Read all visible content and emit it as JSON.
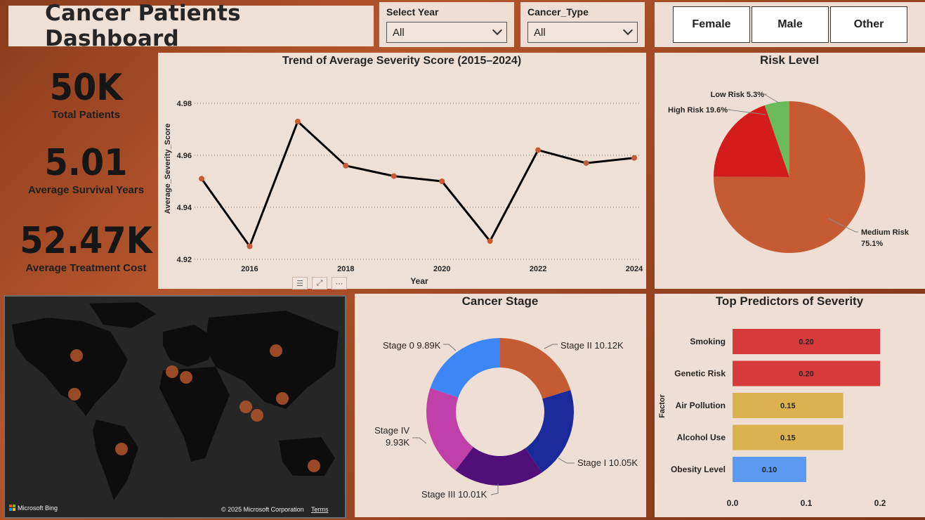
{
  "title": "Cancer Patients Dashboard",
  "filters": [
    {
      "label": "Select Year",
      "value": "All"
    },
    {
      "label": "Cancer_Type",
      "value": "All"
    }
  ],
  "gender_buttons": [
    "Female",
    "Male",
    "Other"
  ],
  "kpis": [
    {
      "value": "50K",
      "caption": "Total  Patients"
    },
    {
      "value": "5.01",
      "caption": "Average Survival Years"
    },
    {
      "value": "52.47K",
      "caption": "Average Treatment Cost"
    }
  ],
  "map": {
    "brand": "Microsoft Bing",
    "copyright": "© 2025 Microsoft Corporation",
    "terms": "Terms",
    "marker_color": "#b4552c"
  },
  "chart_data": [
    {
      "type": "line",
      "title": "Trend of Average Severity Score (2015–2024)",
      "xlabel": "Year",
      "ylabel": "Average_Severity_Score",
      "x": [
        2015,
        2016,
        2017,
        2018,
        2019,
        2020,
        2021,
        2022,
        2023,
        2024
      ],
      "y": [
        4.951,
        4.925,
        4.973,
        4.956,
        4.952,
        4.95,
        4.927,
        4.962,
        4.957,
        4.959
      ],
      "xticks": [
        "2016",
        "2018",
        "2020",
        "2022",
        "2024"
      ],
      "yticks": [
        "4.92",
        "4.94",
        "4.96",
        "4.98"
      ],
      "ylim": [
        4.92,
        4.98
      ],
      "grid": true,
      "line_color": "#000000",
      "marker_color": "#c65a33"
    },
    {
      "type": "pie",
      "title": "Risk Level",
      "slices": [
        {
          "label": "Medium Risk",
          "pct": "75.1%",
          "value": 75.1,
          "color": "#c65a33"
        },
        {
          "label": "High Risk",
          "pct": "19.6%",
          "value": 19.6,
          "color": "#d41c1c"
        },
        {
          "label": "Low Risk",
          "pct": "5.3%",
          "value": 5.3,
          "color": "#6bbb5a"
        }
      ]
    },
    {
      "type": "pie",
      "title": "Cancer Stage",
      "slices": [
        {
          "label": "Stage II 10.12K",
          "value": 10.12,
          "color": "#c65a33"
        },
        {
          "label": "Stage I 10.05K",
          "value": 10.05,
          "color": "#1a2a9a"
        },
        {
          "label": "Stage III 10.01K",
          "value": 10.01,
          "color": "#511079"
        },
        {
          "label": "Stage IV",
          "label2": "9.93K",
          "value": 9.93,
          "color": "#c03fa8"
        },
        {
          "label": "Stage 0 9.89K",
          "value": 9.89,
          "color": "#3d86f7"
        }
      ]
    },
    {
      "type": "bar",
      "title": "Top Predictors of Severity",
      "ylabel": "Factor",
      "categories": [
        "Smoking",
        "Genetic Risk",
        "Air Pollution",
        "Alcohol Use",
        "Obesity Level"
      ],
      "values": [
        0.2,
        0.2,
        0.15,
        0.15,
        0.1
      ],
      "value_labels": [
        "0.20",
        "0.20",
        "0.15",
        "0.15",
        "0.10"
      ],
      "colors": [
        "#d63a3a",
        "#d63a3a",
        "#dcb14f",
        "#dcb14f",
        "#5a9af0"
      ],
      "xticks": [
        "0.0",
        "0.1",
        "0.2"
      ],
      "xlim": [
        0,
        0.2
      ]
    }
  ]
}
